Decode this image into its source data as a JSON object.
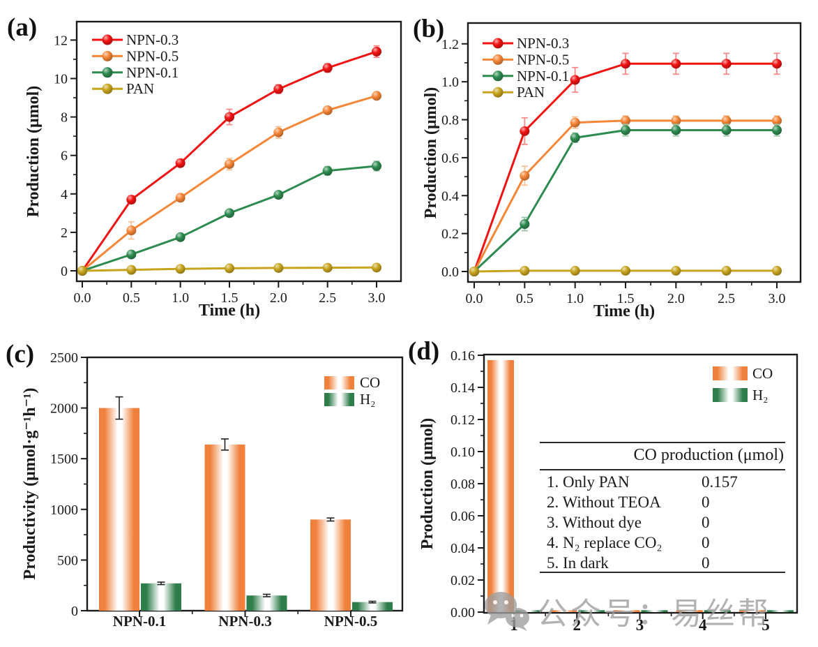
{
  "panels": [
    {
      "label": "(a)"
    },
    {
      "label": "(b)"
    },
    {
      "label": "(c)"
    },
    {
      "label": "(d)"
    }
  ],
  "watermark": {
    "text": "公众号：易丝帮",
    "icon": "wechat-icon",
    "color": "#9d9d9d"
  },
  "axis_color": "#1a1a1a",
  "chart_data": [
    {
      "id": "a",
      "type": "line",
      "title": "",
      "xlabel": "Time (h)",
      "ylabel": "Production (μmol)",
      "x": [
        0.0,
        0.5,
        1.0,
        1.5,
        2.0,
        2.5,
        3.0
      ],
      "xlim": [
        -0.06,
        3.25
      ],
      "ylim": [
        -0.55,
        12.95
      ],
      "xticks": {
        "values": [
          0.0,
          0.5,
          1.0,
          1.5,
          2.0,
          2.5,
          3.0
        ],
        "labels": [
          "0.0",
          "0.5",
          "1.0",
          "1.5",
          "2.0",
          "2.5",
          "3.0"
        ]
      },
      "yticks": {
        "values": [
          0,
          2,
          4,
          6,
          8,
          10,
          12
        ],
        "labels": [
          "0",
          "2",
          "4",
          "6",
          "8",
          "10",
          "12"
        ]
      },
      "minor_x_step": 0.25,
      "minor_y_step": 1,
      "legend_position": "top-left",
      "grid": false,
      "series": [
        {
          "name": "NPN-0.3",
          "color": "#f21212",
          "values": [
            0,
            3.7,
            5.6,
            8.0,
            9.45,
            10.55,
            11.4
          ],
          "errors": [
            0,
            0.2,
            0.18,
            0.4,
            0.22,
            0.22,
            0.3
          ]
        },
        {
          "name": "NPN-0.5",
          "color": "#f58637",
          "values": [
            0,
            2.1,
            3.8,
            5.55,
            7.2,
            8.35,
            9.1
          ],
          "errors": [
            0,
            0.45,
            0.18,
            0.3,
            0.3,
            0.18,
            0.15
          ]
        },
        {
          "name": "NPN-0.1",
          "color": "#2e8b50",
          "values": [
            0,
            0.85,
            1.75,
            3.0,
            3.95,
            5.2,
            5.45
          ],
          "errors": [
            0,
            0.12,
            0.1,
            0.15,
            0.12,
            0.22,
            0.25
          ]
        },
        {
          "name": "PAN",
          "color": "#c8a41e",
          "values": [
            0,
            0.05,
            0.1,
            0.13,
            0.15,
            0.16,
            0.17
          ],
          "errors": [
            0,
            0.03,
            0.03,
            0.03,
            0.03,
            0.03,
            0.03
          ]
        }
      ]
    },
    {
      "id": "b",
      "type": "line",
      "title": "",
      "xlabel": "Time (h)",
      "ylabel": "Production (μmol)",
      "x": [
        0.0,
        0.5,
        1.0,
        1.5,
        2.0,
        2.5,
        3.0
      ],
      "xlim": [
        -0.06,
        3.25
      ],
      "ylim": [
        -0.06,
        1.3
      ],
      "xticks": {
        "values": [
          0.0,
          0.5,
          1.0,
          1.5,
          2.0,
          2.5,
          3.0
        ],
        "labels": [
          "0.0",
          "0.5",
          "1.0",
          "1.5",
          "2.0",
          "2.5",
          "3.0"
        ]
      },
      "yticks": {
        "values": [
          0.0,
          0.2,
          0.4,
          0.6,
          0.8,
          1.0,
          1.2
        ],
        "labels": [
          "0.0",
          "0.2",
          "0.4",
          "0.6",
          "0.8",
          "1.0",
          "1.2"
        ]
      },
      "minor_x_step": 0.25,
      "minor_y_step": 0.1,
      "legend_position": "top-left",
      "grid": false,
      "series": [
        {
          "name": "NPN-0.3",
          "color": "#f21212",
          "values": [
            0,
            0.74,
            1.01,
            1.095,
            1.095,
            1.095,
            1.095
          ],
          "errors": [
            0,
            0.07,
            0.065,
            0.055,
            0.055,
            0.055,
            0.055
          ]
        },
        {
          "name": "NPN-0.5",
          "color": "#f58637",
          "values": [
            0,
            0.505,
            0.785,
            0.795,
            0.795,
            0.795,
            0.795
          ],
          "errors": [
            0,
            0.05,
            0.03,
            0.025,
            0.025,
            0.025,
            0.025
          ]
        },
        {
          "name": "NPN-0.1",
          "color": "#2e8b50",
          "values": [
            0,
            0.25,
            0.705,
            0.745,
            0.745,
            0.745,
            0.745
          ],
          "errors": [
            0,
            0.035,
            0.025,
            0.03,
            0.03,
            0.03,
            0.03
          ]
        },
        {
          "name": "PAN",
          "color": "#c8a41e",
          "values": [
            0,
            0.004,
            0.004,
            0.004,
            0.004,
            0.004,
            0.004
          ],
          "errors": [
            0,
            0.004,
            0.004,
            0.004,
            0.004,
            0.004,
            0.004
          ]
        }
      ]
    },
    {
      "id": "c",
      "type": "bar",
      "title": "",
      "xlabel": "",
      "ylabel": "Productivity (μmol·g⁻¹h⁻¹)",
      "categories": [
        "NPN-0.1",
        "NPN-0.3",
        "NPN-0.5"
      ],
      "ylim": [
        0,
        2500
      ],
      "yticks": {
        "values": [
          0,
          500,
          1000,
          1500,
          2000,
          2500
        ],
        "labels": [
          "0",
          "500",
          "1000",
          "1500",
          "2000",
          "2500"
        ]
      },
      "minor_y_step": 250,
      "legend_position": "top-right",
      "grid": false,
      "series": [
        {
          "name": "CO",
          "color": "#f0813c",
          "values": [
            2000,
            1640,
            900
          ],
          "errors": [
            110,
            55,
            15
          ]
        },
        {
          "name": "H₂",
          "color": "#2e7d4a",
          "values": [
            270,
            150,
            85
          ],
          "errors": [
            12,
            12,
            8
          ]
        }
      ]
    },
    {
      "id": "d",
      "type": "bar",
      "title": "",
      "xlabel": "",
      "ylabel": "Production (μmol)",
      "categories": [
        "1",
        "2",
        "3",
        "4",
        "5"
      ],
      "ylim": [
        0,
        0.16
      ],
      "yticks": {
        "values": [
          0.0,
          0.02,
          0.04,
          0.06,
          0.08,
          0.1,
          0.12,
          0.14,
          0.16
        ],
        "labels": [
          "0.00",
          "0.02",
          "0.04",
          "0.06",
          "0.08",
          "0.10",
          "0.12",
          "0.14",
          "0.16"
        ]
      },
      "minor_y_step": 0.01,
      "legend_position": "top-right",
      "grid": false,
      "series": [
        {
          "name": "CO",
          "color": "#f0813c",
          "values": [
            0.157,
            0.0012,
            0.0012,
            0.0012,
            0.0012
          ],
          "errors": [
            0,
            0,
            0,
            0,
            0
          ]
        },
        {
          "name": "H₂",
          "color": "#2e7d4a",
          "values": [
            0.0012,
            0.0012,
            0.0012,
            0.0012,
            0.0012
          ],
          "errors": [
            0,
            0,
            0,
            0,
            0
          ]
        }
      ],
      "inset_table": {
        "header": "CO production (μmol)",
        "rows": [
          {
            "label": "1. Only PAN",
            "value": "0.157"
          },
          {
            "label": "2. Without TEOA",
            "value": "0"
          },
          {
            "label": "3. Without dye",
            "value": "0"
          },
          {
            "label": "4. N₂ replace CO₂",
            "value": "0"
          },
          {
            "label": "5. In dark",
            "value": "0"
          }
        ]
      }
    }
  ]
}
